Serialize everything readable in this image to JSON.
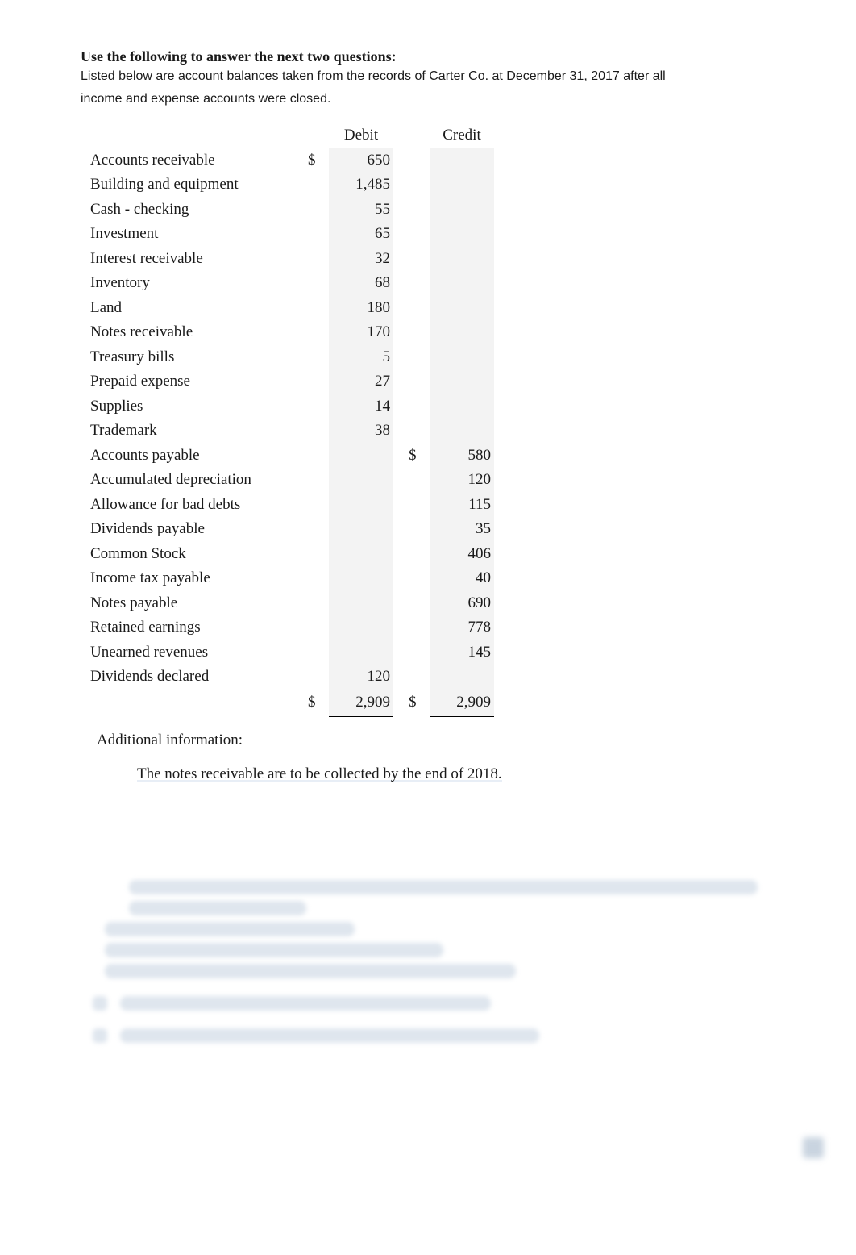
{
  "heading": "Use the following to answer the next two questions:",
  "subtitle_line1": "Listed below are account balances taken from the records of Carter Co. at December 31, 2017 after all",
  "subtitle_line2": "income and expense accounts were closed.",
  "table": {
    "header_debit": "Debit",
    "header_credit": "Credit",
    "rows": [
      {
        "label": "Accounts receivable",
        "debit_sym": "$",
        "debit": "650",
        "credit_sym": "",
        "credit": ""
      },
      {
        "label": "Building and equipment",
        "debit_sym": "",
        "debit": "1,485",
        "credit_sym": "",
        "credit": ""
      },
      {
        "label": "Cash - checking",
        "debit_sym": "",
        "debit": "55",
        "credit_sym": "",
        "credit": ""
      },
      {
        "label": "Investment",
        "debit_sym": "",
        "debit": "65",
        "credit_sym": "",
        "credit": ""
      },
      {
        "label": "Interest receivable",
        "debit_sym": "",
        "debit": "32",
        "credit_sym": "",
        "credit": ""
      },
      {
        "label": "Inventory",
        "debit_sym": "",
        "debit": "68",
        "credit_sym": "",
        "credit": ""
      },
      {
        "label": "Land",
        "debit_sym": "",
        "debit": "180",
        "credit_sym": "",
        "credit": ""
      },
      {
        "label": "Notes receivable",
        "debit_sym": "",
        "debit": "170",
        "credit_sym": "",
        "credit": ""
      },
      {
        "label": "Treasury bills",
        "debit_sym": "",
        "debit": "5",
        "credit_sym": "",
        "credit": ""
      },
      {
        "label": "Prepaid expense",
        "debit_sym": "",
        "debit": "27",
        "credit_sym": "",
        "credit": ""
      },
      {
        "label": "Supplies",
        "debit_sym": "",
        "debit": "14",
        "credit_sym": "",
        "credit": ""
      },
      {
        "label": "Trademark",
        "debit_sym": "",
        "debit": "38",
        "credit_sym": "",
        "credit": ""
      },
      {
        "label": "Accounts payable",
        "debit_sym": "",
        "debit": "",
        "credit_sym": "$",
        "credit": "580"
      },
      {
        "label": "Accumulated depreciation",
        "debit_sym": "",
        "debit": "",
        "credit_sym": "",
        "credit": "120"
      },
      {
        "label": "Allowance for bad debts",
        "debit_sym": "",
        "debit": "",
        "credit_sym": "",
        "credit": "115"
      },
      {
        "label": "Dividends payable",
        "debit_sym": "",
        "debit": "",
        "credit_sym": "",
        "credit": "35"
      },
      {
        "label": "Common Stock",
        "debit_sym": "",
        "debit": "",
        "credit_sym": "",
        "credit": "406"
      },
      {
        "label": "Income tax payable",
        "debit_sym": "",
        "debit": "",
        "credit_sym": "",
        "credit": "40"
      },
      {
        "label": "Notes payable",
        "debit_sym": "",
        "debit": "",
        "credit_sym": "",
        "credit": "690"
      },
      {
        "label": "Retained earnings",
        "debit_sym": "",
        "debit": "",
        "credit_sym": "",
        "credit": "778"
      },
      {
        "label": "Unearned revenues",
        "debit_sym": "",
        "debit": "",
        "credit_sym": "",
        "credit": "145"
      },
      {
        "label": "Dividends declared",
        "debit_sym": "",
        "debit": "120",
        "credit_sym": "",
        "credit": ""
      }
    ],
    "total": {
      "label": "",
      "debit_sym": "$",
      "debit": "2,909",
      "credit_sym": "$",
      "credit": "2,909"
    }
  },
  "additional_label": "Additional information:",
  "note1": "The notes receivable are to be collected by the end of 2018.",
  "blur_widths": {
    "l1": 780,
    "l2": 220,
    "l3": 310,
    "l4": 420,
    "l5": 510,
    "q1": 460,
    "q2": 520
  },
  "colors": {
    "background": "#ffffff",
    "text": "#1a1a1a",
    "table_shade": "#f3f3f3",
    "blur": "#dfe6ee",
    "highlight": "#e8eef6"
  }
}
